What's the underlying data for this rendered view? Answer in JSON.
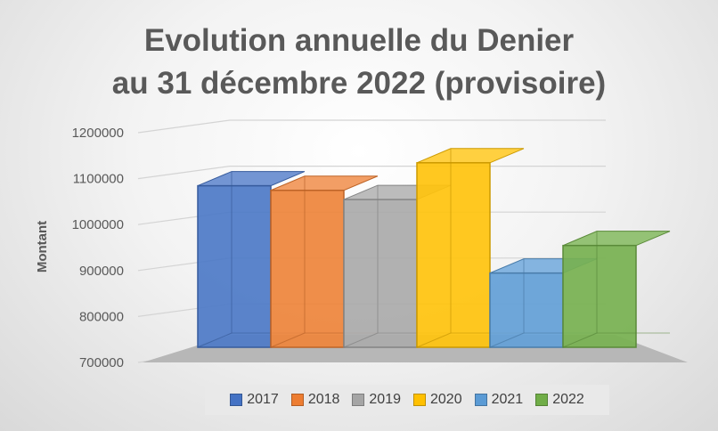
{
  "chart_data": {
    "type": "bar",
    "title_lines": [
      "Evolution annuelle du Denier",
      "au 31 décembre 2022 (provisoire)"
    ],
    "xlabel": "",
    "ylabel": "Montant",
    "ylim": [
      700000,
      1200000
    ],
    "yticks": [
      "1200000",
      "1100000",
      "1000000",
      "900000",
      "800000",
      "700000"
    ],
    "grid": true,
    "legend_position": "bottom",
    "series": [
      {
        "name": "2017",
        "value": 1100000,
        "color": "#4472C4"
      },
      {
        "name": "2018",
        "value": 1090000,
        "color": "#ED7D31"
      },
      {
        "name": "2019",
        "value": 1070000,
        "color": "#A5A5A5"
      },
      {
        "name": "2020",
        "value": 1150000,
        "color": "#FFC000"
      },
      {
        "name": "2021",
        "value": 910000,
        "color": "#5B9BD5"
      },
      {
        "name": "2022",
        "value": 970000,
        "color": "#70AD47"
      }
    ]
  }
}
